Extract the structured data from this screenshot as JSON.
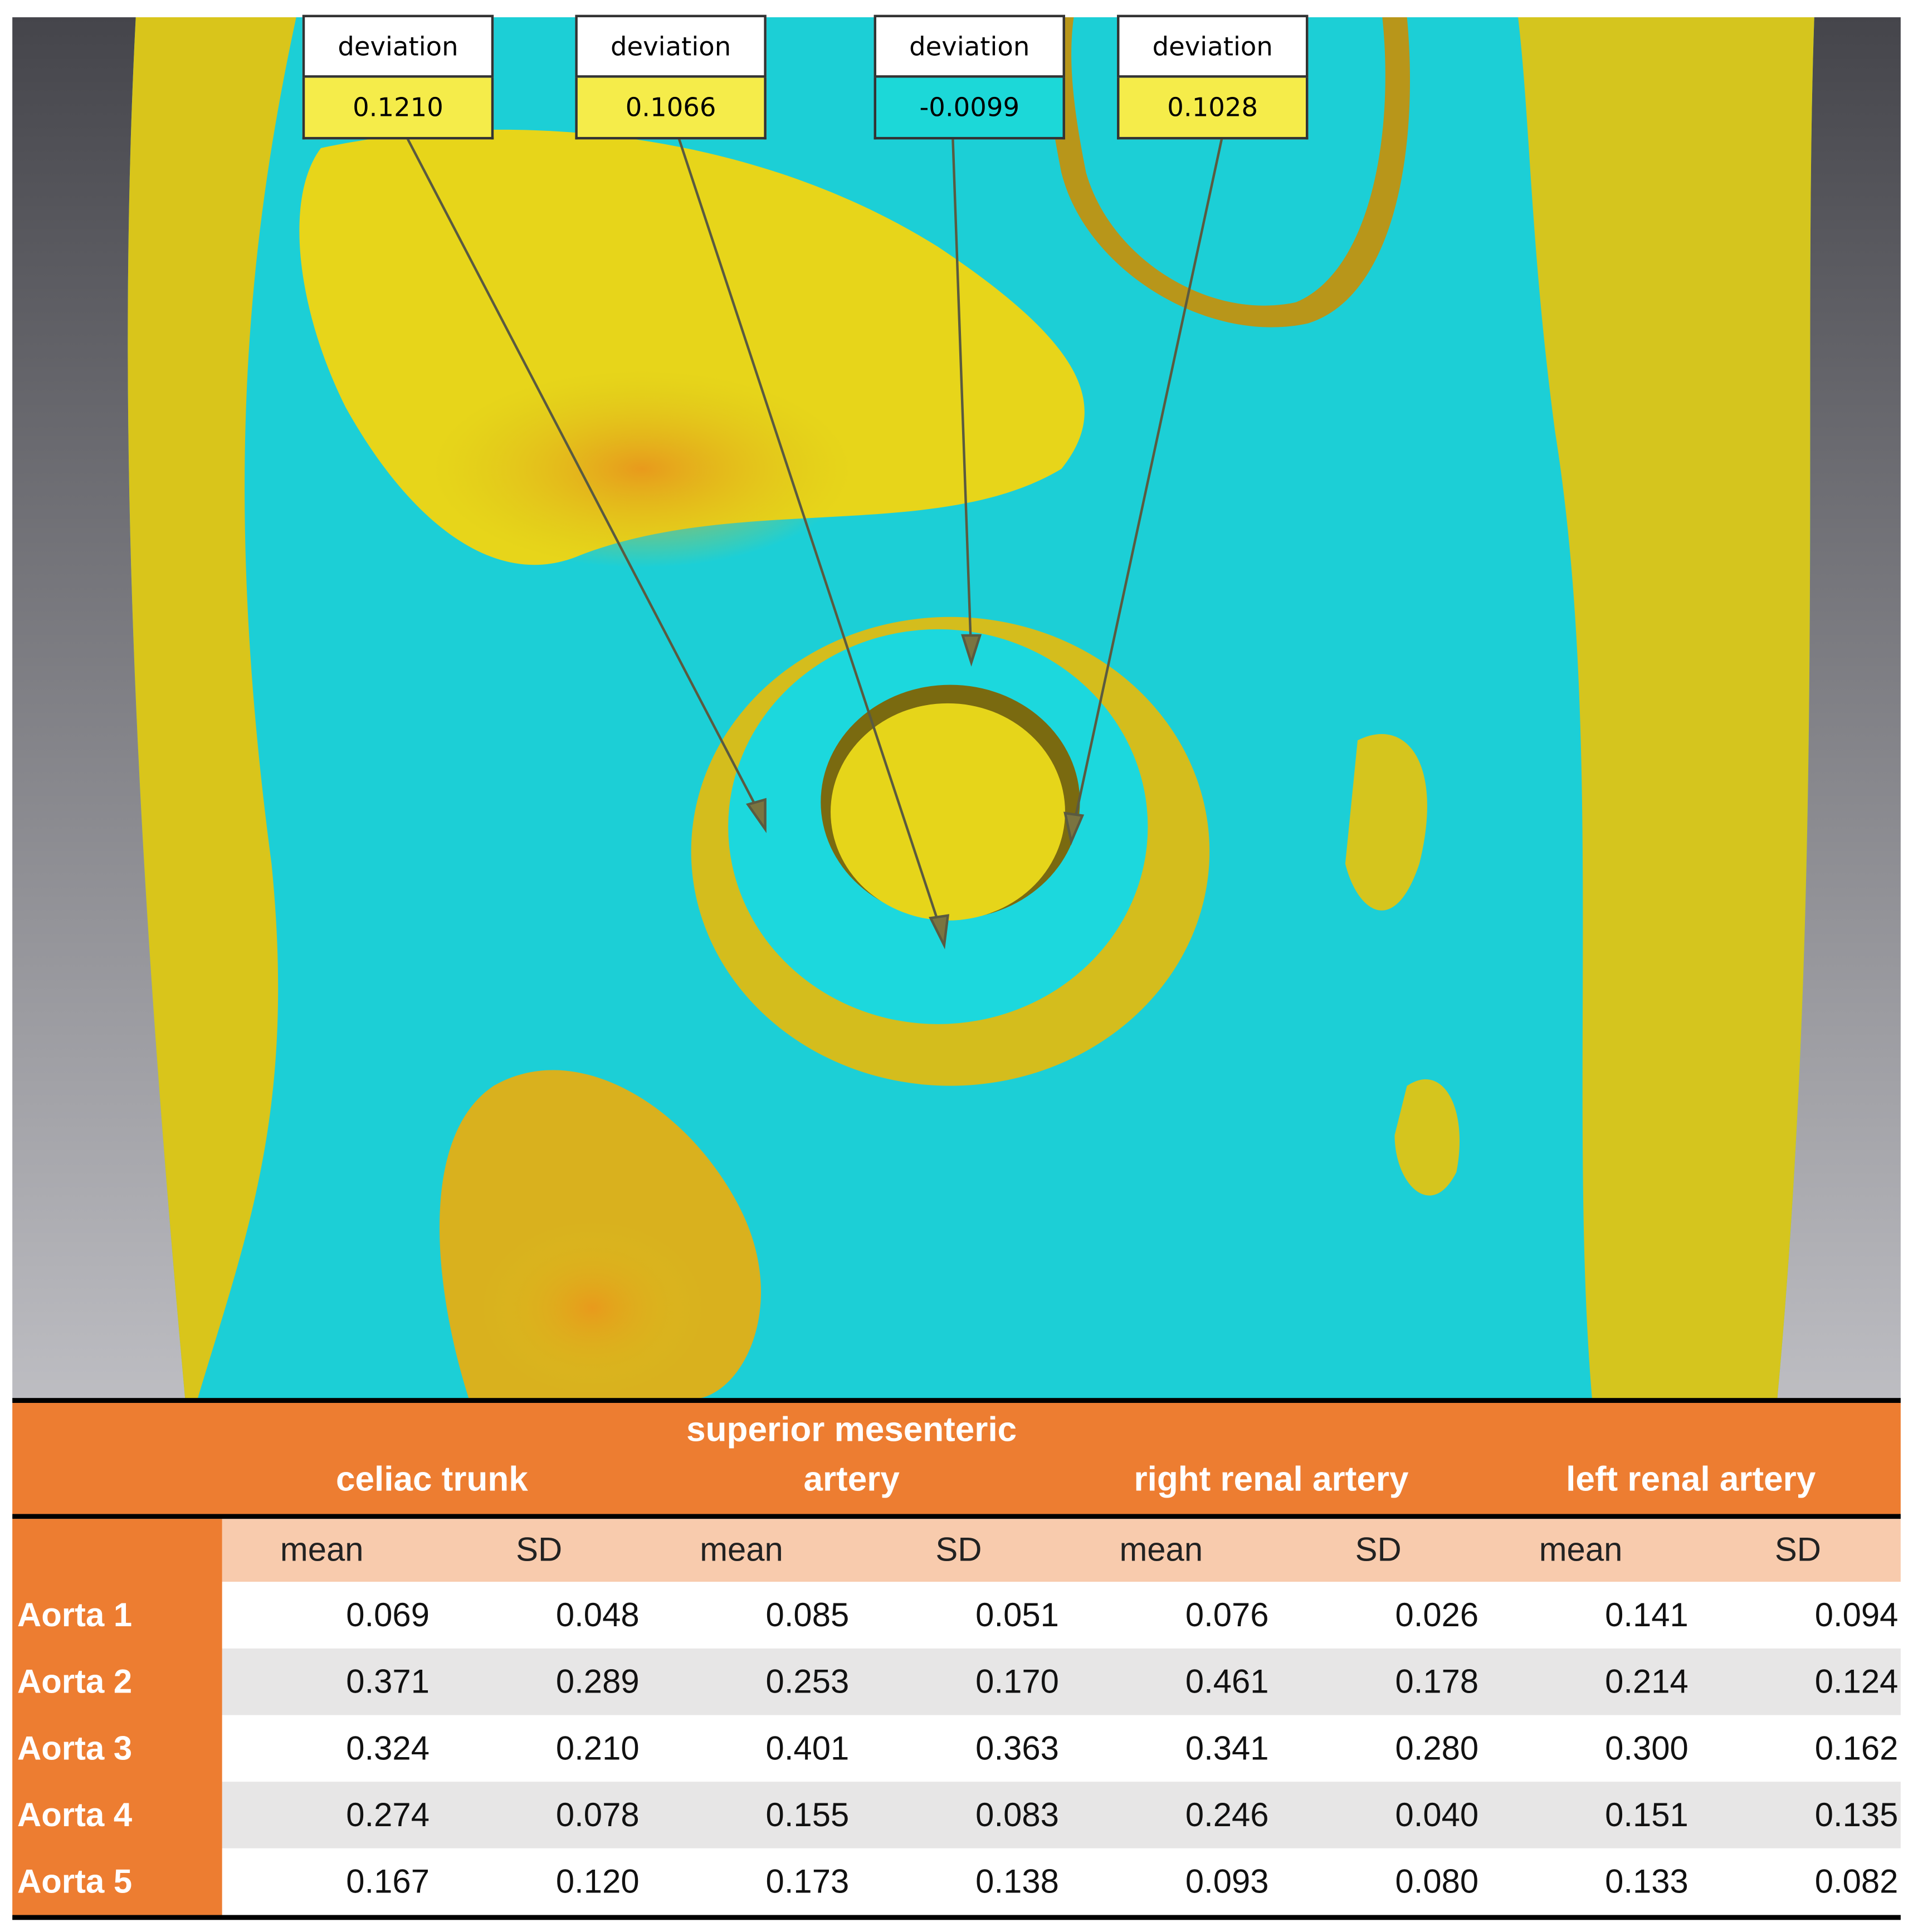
{
  "callouts": [
    {
      "label": "deviation",
      "value": "0.1210"
    },
    {
      "label": "deviation",
      "value": "0.1066"
    },
    {
      "label": "deviation",
      "value": "-0.0099"
    },
    {
      "label": "deviation",
      "value": "0.1028"
    }
  ],
  "table": {
    "groups": [
      "celiac trunk",
      "superior mesenteric artery",
      "right renal artery",
      "left renal artery"
    ],
    "subheaders": [
      "mean",
      "SD",
      "mean",
      "SD",
      "mean",
      "SD",
      "mean",
      "SD"
    ],
    "rows": [
      {
        "label": "Aorta 1",
        "cells": [
          "0.069",
          "0.048",
          "0.085",
          "0.051",
          "0.076",
          "0.026",
          "0.141",
          "0.094"
        ]
      },
      {
        "label": "Aorta 2",
        "cells": [
          "0.371",
          "0.289",
          "0.253",
          "0.170",
          "0.461",
          "0.178",
          "0.214",
          "0.124"
        ]
      },
      {
        "label": "Aorta 3",
        "cells": [
          "0.324",
          "0.210",
          "0.401",
          "0.363",
          "0.341",
          "0.280",
          "0.300",
          "0.162"
        ]
      },
      {
        "label": "Aorta 4",
        "cells": [
          "0.274",
          "0.078",
          "0.155",
          "0.083",
          "0.246",
          "0.040",
          "0.151",
          "0.135"
        ]
      },
      {
        "label": "Aorta 5",
        "cells": [
          "0.167",
          "0.120",
          "0.173",
          "0.138",
          "0.093",
          "0.080",
          "0.133",
          "0.082"
        ]
      }
    ]
  }
}
